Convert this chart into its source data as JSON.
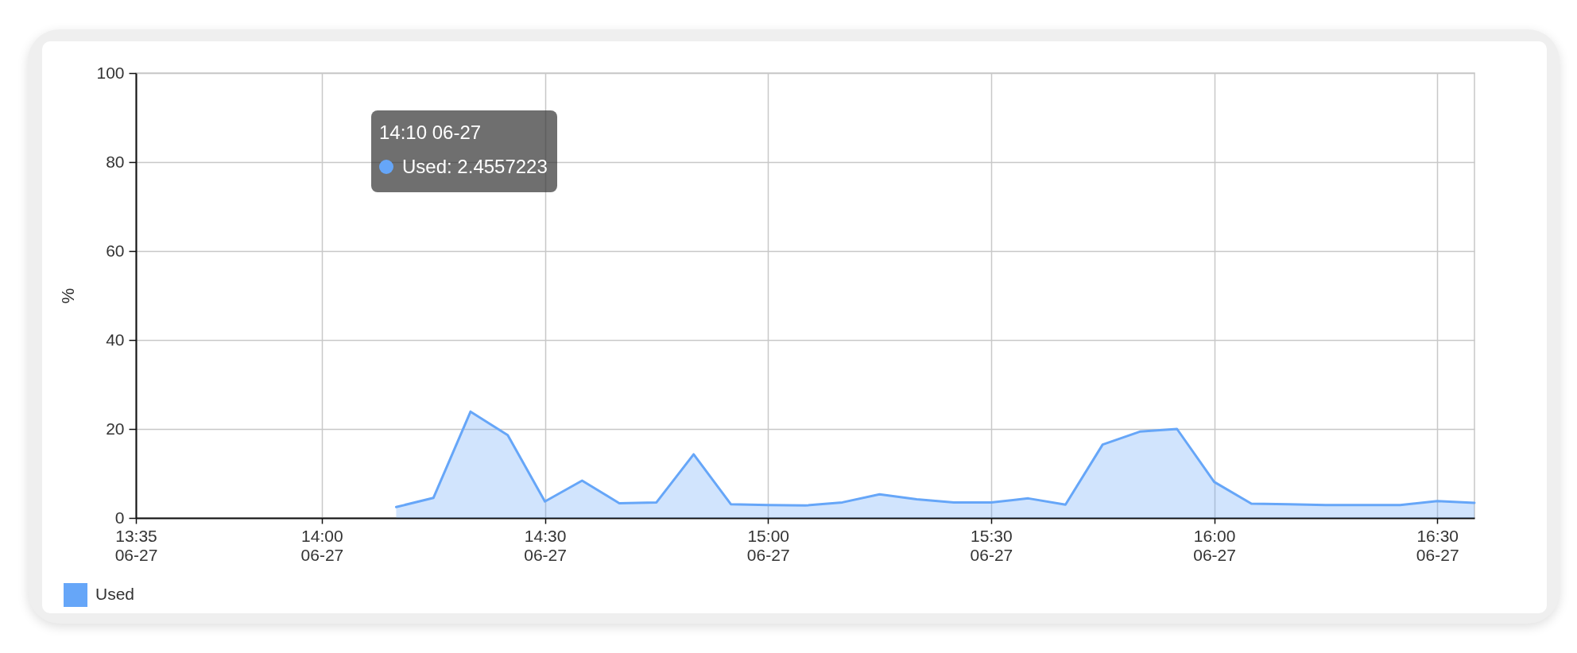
{
  "chart_data": {
    "type": "area",
    "ylabel": "%",
    "x": [
      "--06-27T14:10",
      "--06-27T14:15",
      "--06-27T14:20",
      "--06-27T14:25",
      "--06-27T14:30",
      "--06-27T14:35",
      "--06-27T14:40",
      "--06-27T14:45",
      "--06-27T14:50",
      "--06-27T14:55",
      "--06-27T15:00",
      "--06-27T15:05",
      "--06-27T15:10",
      "--06-27T15:15",
      "--06-27T15:20",
      "--06-27T15:25",
      "--06-27T15:30",
      "--06-27T15:35",
      "--06-27T15:40",
      "--06-27T15:45",
      "--06-27T15:50",
      "--06-27T15:55",
      "--06-27T16:00",
      "--06-27T16:05",
      "--06-27T16:10",
      "--06-27T16:15",
      "--06-27T16:20",
      "--06-27T16:25",
      "--06-27T16:30",
      "--06-27T16:35"
    ],
    "series": [
      {
        "name": "Used",
        "color": "#66a6f8",
        "values": [
          2.4557223,
          4.5,
          23.9,
          18.6,
          3.7,
          8.4,
          3.3,
          3.5,
          14.3,
          3.1,
          2.9,
          2.8,
          3.5,
          5.3,
          4.2,
          3.5,
          3.5,
          4.4,
          3.0,
          16.5,
          19.4,
          20.0,
          8.1,
          3.2,
          3.1,
          2.9,
          2.9,
          2.9,
          3.8,
          3.4
        ]
      }
    ],
    "xlim": [
      "--06-27T13:35",
      "--06-27T16:35"
    ],
    "xticks": [
      {
        "value": "--06-27T13:35",
        "label": "13:35\n06-27"
      },
      {
        "value": "--06-27T14:00",
        "label": "14:00\n06-27"
      },
      {
        "value": "--06-27T14:30",
        "label": "14:30\n06-27"
      },
      {
        "value": "--06-27T15:00",
        "label": "15:00\n06-27"
      },
      {
        "value": "--06-27T15:30",
        "label": "15:30\n06-27"
      },
      {
        "value": "--06-27T16:00",
        "label": "16:00\n06-27"
      },
      {
        "value": "--06-27T16:30",
        "label": "16:30\n06-27"
      }
    ],
    "ylim": [
      0,
      100
    ],
    "yticks": [
      0,
      20,
      40,
      60,
      80,
      100
    ],
    "grid": true,
    "legend": "bottom left",
    "annotations": [
      "14:10 06-27\nUsed: 2.4557223"
    ]
  }
}
